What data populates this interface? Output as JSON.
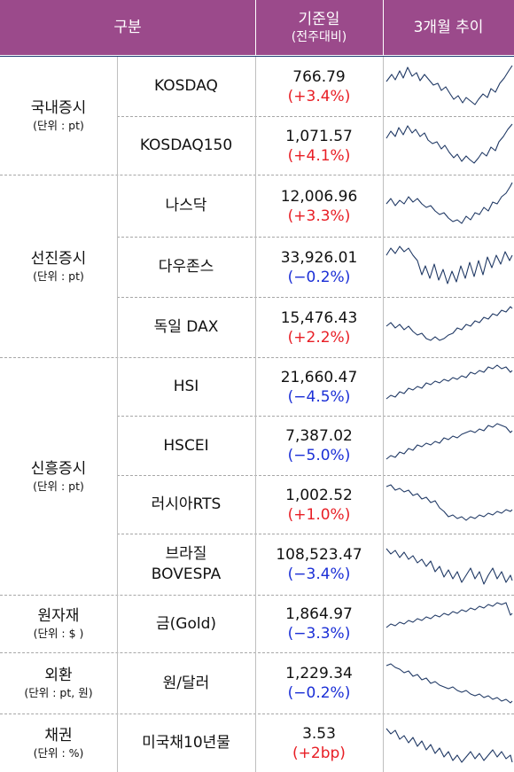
{
  "header": {
    "col_category": "구분",
    "col_date": "기준일",
    "col_date_sub": "(전주대비)",
    "col_trend": "3개월 추이"
  },
  "colors": {
    "header_bg": "#9b4a8b",
    "up": "#e81e25",
    "down": "#1b2fd6",
    "line": "#1f3864"
  },
  "groups": [
    {
      "name": "국내증시",
      "unit": "(단위 : pt)"
    },
    {
      "name": "선진증시",
      "unit": "(단위 : pt)"
    },
    {
      "name": "신흥증시",
      "unit": "(단위 : pt)"
    },
    {
      "name": "원자재",
      "unit": "(단위 : $ )"
    },
    {
      "name": "외환",
      "unit": "(단위 : pt, 원)"
    },
    {
      "name": "채권",
      "unit": "(단위 : %)"
    }
  ],
  "rows": [
    {
      "index": "KOSDAQ",
      "value": "766.79",
      "change": "(+3.4%)",
      "dir": "up"
    },
    {
      "index": "KOSDAQ150",
      "value": "1,071.57",
      "change": "(+4.1%)",
      "dir": "up"
    },
    {
      "index": "나스닥",
      "value": "12,006.96",
      "change": "(+3.3%)",
      "dir": "up"
    },
    {
      "index": "다우존스",
      "value": "33,926.01",
      "change": "(−0.2%)",
      "dir": "down"
    },
    {
      "index": "독일 DAX",
      "value": "15,476.43",
      "change": "(+2.2%)",
      "dir": "up"
    },
    {
      "index": "HSI",
      "value": "21,660.47",
      "change": "(−4.5%)",
      "dir": "down"
    },
    {
      "index": "HSCEI",
      "value": "7,387.02",
      "change": "(−5.0%)",
      "dir": "down"
    },
    {
      "index": "러시아RTS",
      "value": "1,002.52",
      "change": "(+1.0%)",
      "dir": "up"
    },
    {
      "index": "브라질",
      "index2": "BOVESPA",
      "value": "108,523.47",
      "change": "(−3.4%)",
      "dir": "down"
    },
    {
      "index": "금(Gold)",
      "value": "1,864.97",
      "change": "(−3.3%)",
      "dir": "down"
    },
    {
      "index": "원/달러",
      "value": "1,229.34",
      "change": "(−0.2%)",
      "dir": "down"
    },
    {
      "index": "미국채10년물",
      "value": "3.53",
      "change": "(+2bp)",
      "dir": "up"
    }
  ],
  "trend_icon": "sparkline-3-month"
}
